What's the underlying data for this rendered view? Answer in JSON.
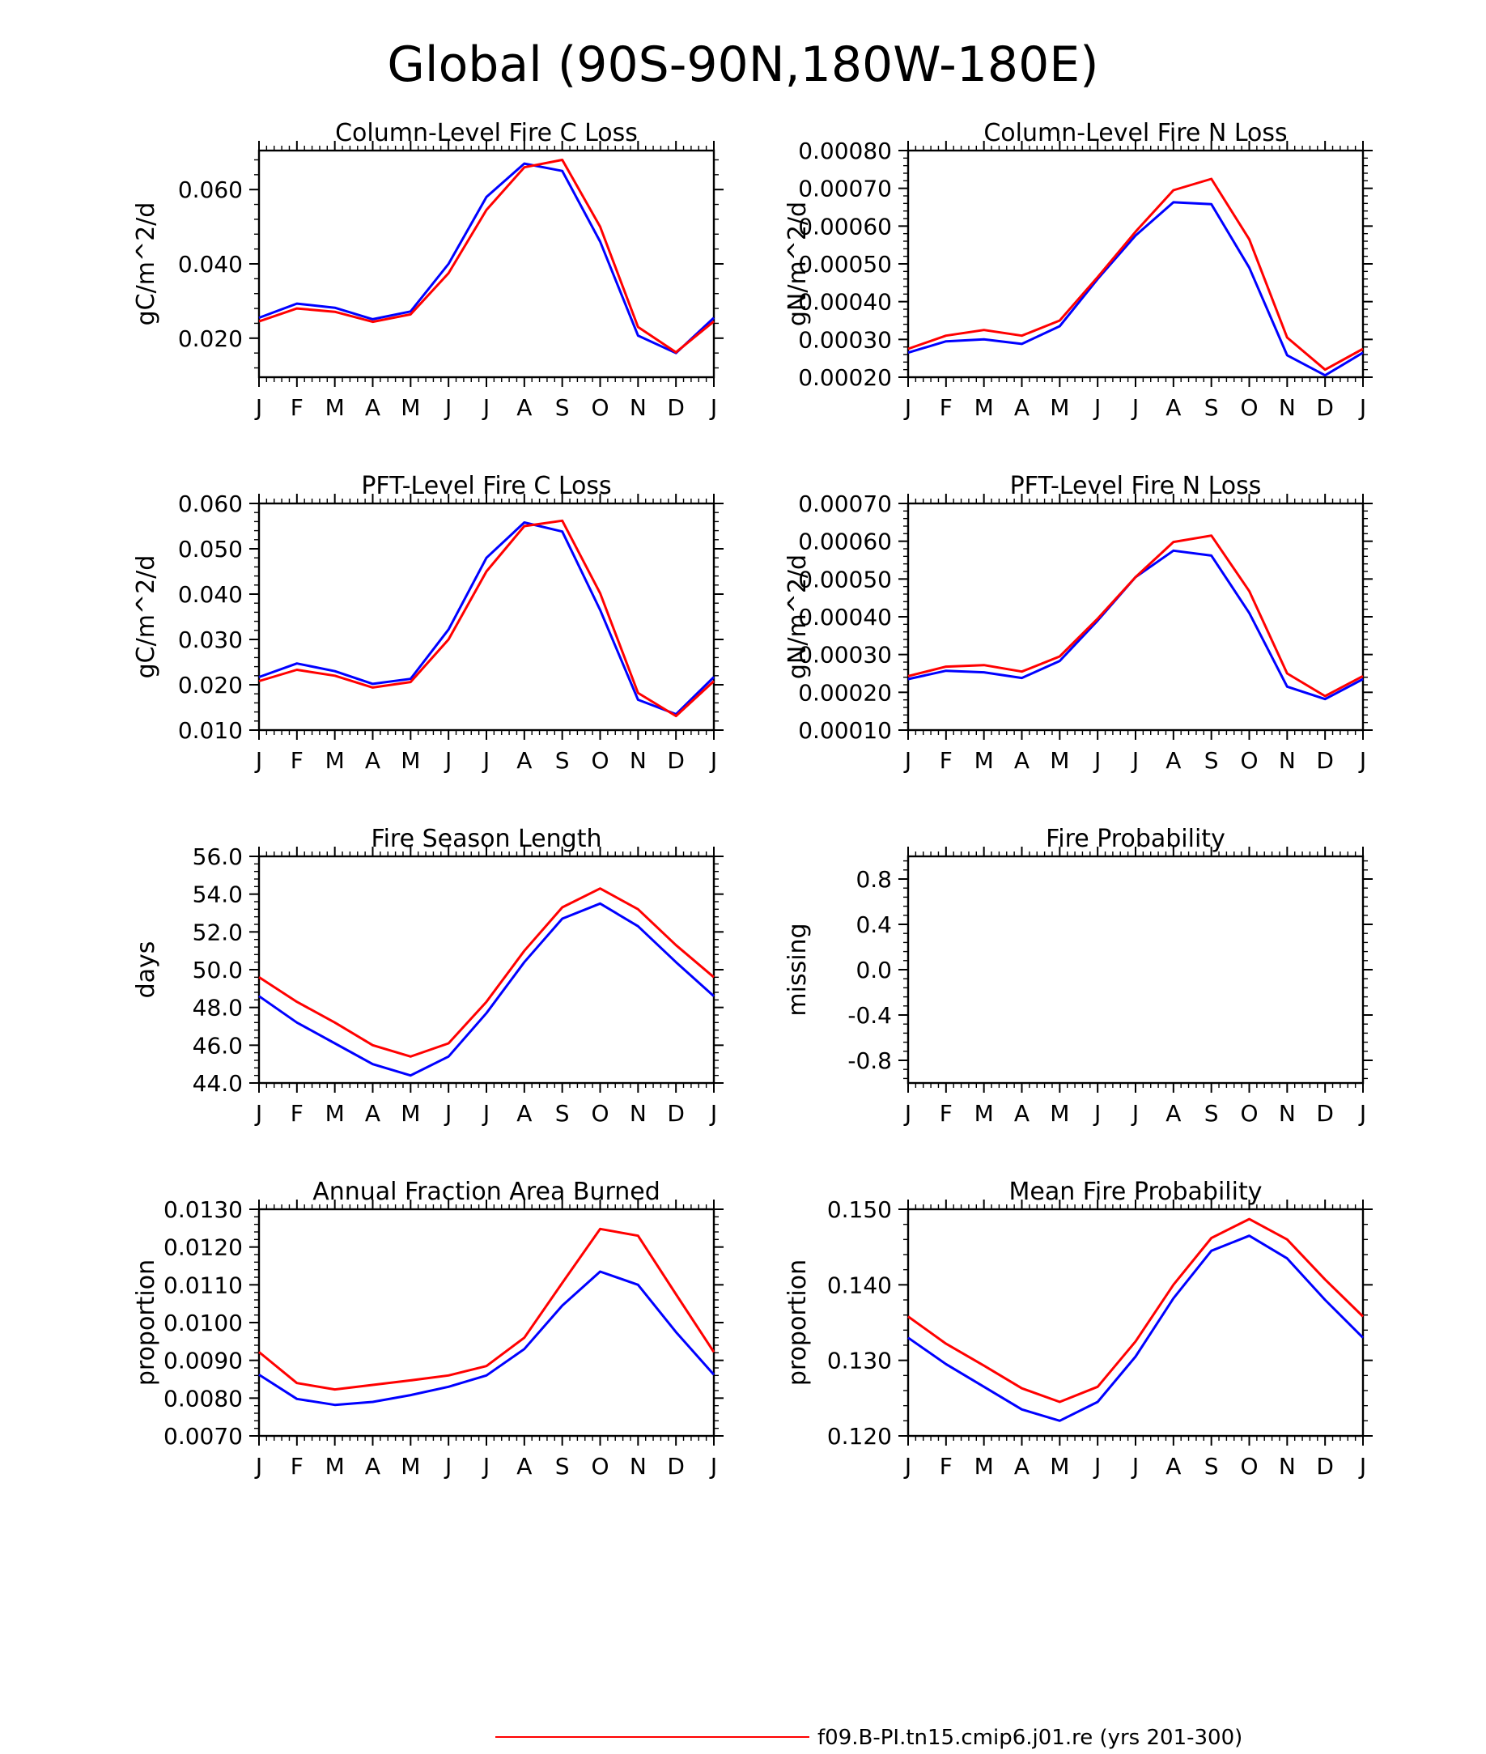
{
  "figure": {
    "title": "Global (90S-90N,180W-180E)",
    "legend": [
      {
        "label": "f09.B-PI.tn15.cmip6.j01.re (yrs 201-300)",
        "color": "#ff0000"
      }
    ]
  },
  "colors": {
    "series_red": "#ff0000",
    "series_blue": "#0000ff"
  },
  "chart_data": [
    {
      "type": "line",
      "title": "Column-Level Fire C Loss",
      "xlabel": "",
      "ylabel": "gC/m^2/d",
      "categories": [
        "J",
        "F",
        "M",
        "A",
        "M",
        "J",
        "J",
        "A",
        "S",
        "O",
        "N",
        "D",
        "J"
      ],
      "ylim": [
        0.0095,
        0.0705
      ],
      "yticks": [
        0.02,
        0.04,
        0.06
      ],
      "ytick_labels": [
        "0.020",
        "0.040",
        "0.060"
      ],
      "series": [
        {
          "color": "#0000ff",
          "values": [
            0.0255,
            0.0293,
            0.0282,
            0.0251,
            0.0272,
            0.04,
            0.058,
            0.067,
            0.065,
            0.046,
            0.0207,
            0.016,
            0.0255
          ]
        },
        {
          "color": "#ff0000",
          "values": [
            0.0245,
            0.028,
            0.0271,
            0.0244,
            0.0264,
            0.0375,
            0.0545,
            0.066,
            0.068,
            0.05,
            0.023,
            0.0162,
            0.0245
          ]
        }
      ]
    },
    {
      "type": "line",
      "title": "Column-Level Fire N Loss",
      "xlabel": "",
      "ylabel": "gN/m^2/d",
      "categories": [
        "J",
        "F",
        "M",
        "A",
        "M",
        "J",
        "J",
        "A",
        "S",
        "O",
        "N",
        "D",
        "J"
      ],
      "ylim": [
        0.0002,
        0.0008
      ],
      "yticks": [
        0.0002,
        0.0003,
        0.0004,
        0.0005,
        0.0006,
        0.0007,
        0.0008
      ],
      "ytick_labels": [
        "0.00020",
        "0.00030",
        "0.00040",
        "0.00050",
        "0.00060",
        "0.00070",
        "0.00080"
      ],
      "series": [
        {
          "color": "#0000ff",
          "values": [
            0.000265,
            0.000295,
            0.0003,
            0.000288,
            0.000335,
            0.00046,
            0.000575,
            0.000663,
            0.000658,
            0.00049,
            0.000258,
            0.000205,
            0.000265
          ]
        },
        {
          "color": "#ff0000",
          "values": [
            0.000275,
            0.00031,
            0.000325,
            0.00031,
            0.00035,
            0.000465,
            0.000585,
            0.000695,
            0.000725,
            0.000565,
            0.000305,
            0.00022,
            0.000275
          ]
        }
      ]
    },
    {
      "type": "line",
      "title": "PFT-Level Fire C Loss",
      "xlabel": "",
      "ylabel": "gC/m^2/d",
      "categories": [
        "J",
        "F",
        "M",
        "A",
        "M",
        "J",
        "J",
        "A",
        "S",
        "O",
        "N",
        "D",
        "J"
      ],
      "ylim": [
        0.01,
        0.06
      ],
      "yticks": [
        0.01,
        0.02,
        0.03,
        0.04,
        0.05,
        0.06
      ],
      "ytick_labels": [
        "0.010",
        "0.020",
        "0.030",
        "0.040",
        "0.050",
        "0.060"
      ],
      "series": [
        {
          "color": "#0000ff",
          "values": [
            0.0217,
            0.0247,
            0.023,
            0.0202,
            0.0213,
            0.0322,
            0.048,
            0.0558,
            0.0538,
            0.0365,
            0.0167,
            0.0135,
            0.0217
          ]
        },
        {
          "color": "#ff0000",
          "values": [
            0.0208,
            0.0233,
            0.022,
            0.0194,
            0.0206,
            0.03,
            0.045,
            0.055,
            0.0562,
            0.0402,
            0.0182,
            0.0131,
            0.0208
          ]
        }
      ]
    },
    {
      "type": "line",
      "title": "PFT-Level Fire N Loss",
      "xlabel": "",
      "ylabel": "gN/m^2/d",
      "categories": [
        "J",
        "F",
        "M",
        "A",
        "M",
        "J",
        "J",
        "A",
        "S",
        "O",
        "N",
        "D",
        "J"
      ],
      "ylim": [
        0.0001,
        0.0007
      ],
      "yticks": [
        0.0001,
        0.0002,
        0.0003,
        0.0004,
        0.0005,
        0.0006,
        0.0007
      ],
      "ytick_labels": [
        "0.00010",
        "0.00020",
        "0.00030",
        "0.00040",
        "0.00050",
        "0.00060",
        "0.00070"
      ],
      "series": [
        {
          "color": "#0000ff",
          "values": [
            0.000235,
            0.000257,
            0.000253,
            0.000238,
            0.000283,
            0.00039,
            0.000505,
            0.000575,
            0.000562,
            0.00041,
            0.000215,
            0.000182,
            0.000235
          ]
        },
        {
          "color": "#ff0000",
          "values": [
            0.000243,
            0.000268,
            0.000272,
            0.000255,
            0.000295,
            0.000395,
            0.000505,
            0.000598,
            0.000615,
            0.000468,
            0.00025,
            0.00019,
            0.000243
          ]
        }
      ]
    },
    {
      "type": "line",
      "title": "Fire Season Length",
      "xlabel": "",
      "ylabel": "days",
      "categories": [
        "J",
        "F",
        "M",
        "A",
        "M",
        "J",
        "J",
        "A",
        "S",
        "O",
        "N",
        "D",
        "J"
      ],
      "ylim": [
        44.0,
        56.0
      ],
      "yticks": [
        44,
        46,
        48,
        50,
        52,
        54,
        56
      ],
      "ytick_labels": [
        "44.0",
        "46.0",
        "48.0",
        "50.0",
        "52.0",
        "54.0",
        "56.0"
      ],
      "series": [
        {
          "color": "#0000ff",
          "values": [
            48.6,
            47.2,
            46.1,
            45.0,
            44.4,
            45.4,
            47.7,
            50.4,
            52.7,
            53.5,
            52.3,
            50.4,
            48.6
          ]
        },
        {
          "color": "#ff0000",
          "values": [
            49.6,
            48.3,
            47.2,
            46.0,
            45.4,
            46.1,
            48.3,
            51.0,
            53.3,
            54.3,
            53.2,
            51.3,
            49.6
          ]
        }
      ]
    },
    {
      "type": "line",
      "title": "Fire Probability",
      "xlabel": "",
      "ylabel": "missing",
      "categories": [
        "J",
        "F",
        "M",
        "A",
        "M",
        "J",
        "J",
        "A",
        "S",
        "O",
        "N",
        "D",
        "J"
      ],
      "ylim": [
        -1.0,
        1.0
      ],
      "yticks": [
        -0.8,
        -0.4,
        0.0,
        0.4,
        0.8
      ],
      "ytick_labels": [
        "-0.8",
        "-0.4",
        "0.0",
        "0.4",
        "0.8"
      ],
      "series": []
    },
    {
      "type": "line",
      "title": "Annual Fraction Area Burned",
      "xlabel": "",
      "ylabel": "proportion",
      "categories": [
        "J",
        "F",
        "M",
        "A",
        "M",
        "J",
        "J",
        "A",
        "S",
        "O",
        "N",
        "D",
        "J"
      ],
      "ylim": [
        0.007,
        0.013
      ],
      "yticks": [
        0.007,
        0.008,
        0.009,
        0.01,
        0.011,
        0.012,
        0.013
      ],
      "ytick_labels": [
        "0.0070",
        "0.0080",
        "0.0090",
        "0.0100",
        "0.0110",
        "0.0120",
        "0.0130"
      ],
      "series": [
        {
          "color": "#0000ff",
          "values": [
            0.00862,
            0.00798,
            0.00782,
            0.0079,
            0.00808,
            0.0083,
            0.0086,
            0.0093,
            0.01045,
            0.01135,
            0.011,
            0.00975,
            0.00862
          ]
        },
        {
          "color": "#ff0000",
          "values": [
            0.00922,
            0.0084,
            0.00823,
            0.00835,
            0.00847,
            0.0086,
            0.00885,
            0.0096,
            0.01105,
            0.01248,
            0.0123,
            0.01075,
            0.00922
          ]
        }
      ]
    },
    {
      "type": "line",
      "title": "Mean Fire Probability",
      "xlabel": "",
      "ylabel": "proportion",
      "categories": [
        "J",
        "F",
        "M",
        "A",
        "M",
        "J",
        "J",
        "A",
        "S",
        "O",
        "N",
        "D",
        "J"
      ],
      "ylim": [
        0.12,
        0.15
      ],
      "yticks": [
        0.12,
        0.13,
        0.14,
        0.15
      ],
      "ytick_labels": [
        "0.120",
        "0.130",
        "0.140",
        "0.150"
      ],
      "series": [
        {
          "color": "#0000ff",
          "values": [
            0.133,
            0.1295,
            0.1265,
            0.1235,
            0.122,
            0.1245,
            0.1305,
            0.1382,
            0.1445,
            0.1465,
            0.1435,
            0.138,
            0.133
          ]
        },
        {
          "color": "#ff0000",
          "values": [
            0.1358,
            0.1322,
            0.1293,
            0.1263,
            0.1245,
            0.1265,
            0.1325,
            0.14,
            0.1462,
            0.1487,
            0.146,
            0.1407,
            0.1358
          ]
        }
      ]
    }
  ]
}
